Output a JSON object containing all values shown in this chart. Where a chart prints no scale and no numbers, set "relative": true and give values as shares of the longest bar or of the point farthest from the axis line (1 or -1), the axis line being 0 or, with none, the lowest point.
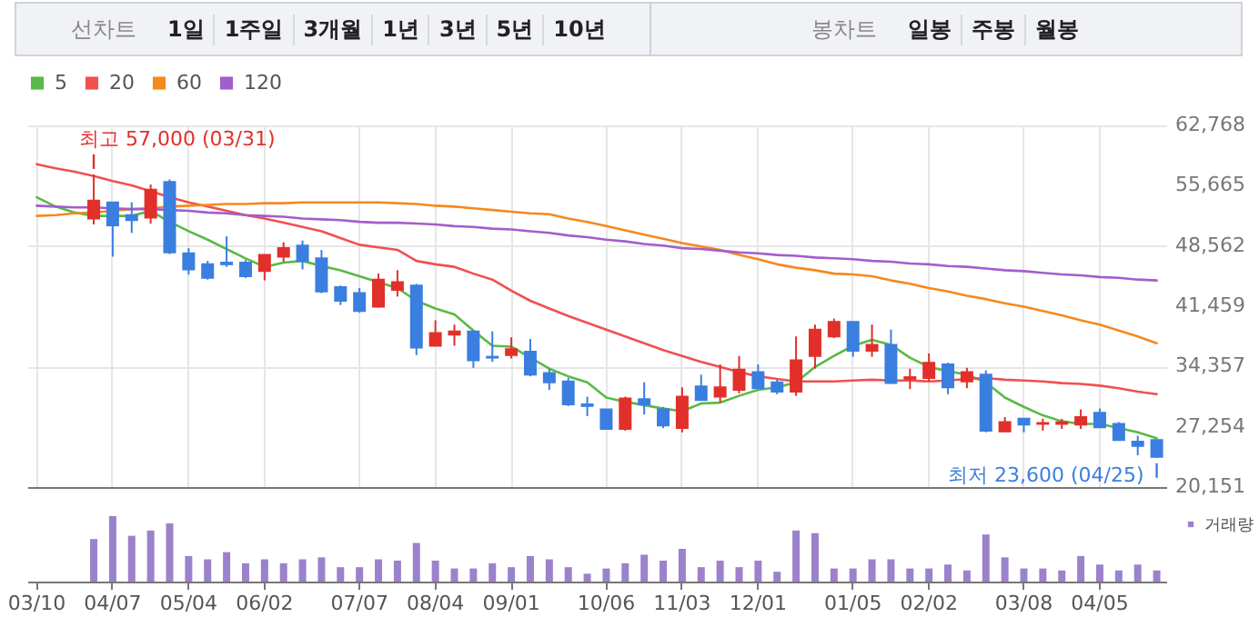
{
  "chart_data": [
    {
      "type": "other",
      "title": "선차트",
      "annotations": [
        "1일",
        "1주일",
        "3개월",
        "1년",
        "3년",
        "5년",
        "10년"
      ]
    },
    {
      "type": "other",
      "title": "봉차트",
      "annotations": [
        "일봉",
        "주봉",
        "월봉"
      ]
    },
    {
      "type": "candlestick",
      "categories": [
        null,
        null,
        null,
        null,
        null,
        null,
        null,
        null,
        null,
        null,
        null,
        null,
        null,
        null,
        null,
        null,
        null,
        null,
        null,
        null,
        null,
        null,
        null,
        null,
        null,
        null,
        null,
        null,
        null,
        null,
        null,
        null,
        null,
        null,
        null,
        null,
        null,
        null,
        null,
        null,
        null,
        null,
        null,
        null,
        null,
        null,
        null,
        null,
        null,
        null,
        null,
        null,
        null,
        null,
        null,
        null,
        null,
        null,
        null,
        null
      ],
      "ohlc": [
        null,
        null,
        null,
        [
          51800,
          57000,
          51100,
          53900
        ],
        [
          53700,
          53700,
          47300,
          51000
        ],
        [
          52200,
          53700,
          50100,
          51600
        ],
        [
          51900,
          55800,
          51200,
          55200
        ],
        [
          56100,
          56400,
          47600,
          47800
        ],
        [
          47700,
          48300,
          45200,
          45800
        ],
        [
          46400,
          46800,
          44600,
          44800
        ],
        [
          46600,
          49700,
          46100,
          46400
        ],
        [
          46600,
          46900,
          44800,
          45000
        ],
        [
          45600,
          47500,
          44500,
          47500
        ],
        [
          47300,
          49000,
          46700,
          48300
        ],
        [
          48600,
          49200,
          45800,
          46800
        ],
        [
          47100,
          48100,
          43000,
          43200
        ],
        [
          43700,
          43900,
          41600,
          42100
        ],
        [
          43000,
          43600,
          40700,
          40900
        ],
        [
          41400,
          45300,
          41300,
          44600
        ],
        [
          43400,
          45700,
          42600,
          44300
        ],
        [
          43900,
          44100,
          35700,
          36600
        ],
        [
          36800,
          39800,
          36800,
          38300
        ],
        [
          38100,
          39300,
          36800,
          38500
        ],
        [
          38500,
          38500,
          34200,
          35100
        ],
        [
          35500,
          38500,
          34900,
          35400
        ],
        [
          35700,
          37800,
          35300,
          36400
        ],
        [
          36100,
          37600,
          33200,
          33400
        ],
        [
          33600,
          34100,
          31600,
          32500
        ],
        [
          32600,
          33000,
          29700,
          29900
        ],
        [
          29900,
          30800,
          28500,
          29700
        ],
        [
          29300,
          29300,
          27000,
          27000
        ],
        [
          27000,
          30800,
          26800,
          30600
        ],
        [
          30500,
          32500,
          28700,
          29900
        ],
        [
          29300,
          29600,
          27100,
          27400
        ],
        [
          27100,
          31900,
          26600,
          30800
        ],
        [
          32000,
          33400,
          30400,
          30400
        ],
        [
          30800,
          34600,
          30100,
          31900
        ],
        [
          31600,
          35600,
          31200,
          34000
        ],
        [
          33700,
          34600,
          31800,
          31800
        ],
        [
          32500,
          32900,
          31100,
          31400
        ],
        [
          31400,
          37900,
          30900,
          35100
        ],
        [
          35600,
          39300,
          34100,
          38700
        ],
        [
          37900,
          40000,
          37700,
          39600
        ],
        [
          39600,
          39600,
          35500,
          36200
        ],
        [
          36200,
          39300,
          35500,
          36900
        ],
        [
          36900,
          38700,
          32300,
          32400
        ],
        [
          32900,
          34100,
          31700,
          33100
        ],
        [
          33000,
          35900,
          32600,
          34800
        ],
        [
          34600,
          34800,
          31100,
          31900
        ],
        [
          32600,
          34200,
          31800,
          33700
        ],
        [
          33400,
          33900,
          26600,
          26800
        ],
        [
          26700,
          28400,
          26600,
          27800
        ],
        [
          28200,
          28200,
          26600,
          27500
        ],
        [
          27600,
          28200,
          26800,
          27700
        ],
        [
          27600,
          28200,
          27000,
          27800
        ],
        [
          27500,
          29300,
          27000,
          28400
        ],
        [
          28900,
          29400,
          27100,
          27200
        ],
        [
          27600,
          27800,
          25600,
          25700
        ],
        [
          25500,
          26200,
          23900,
          25000
        ],
        [
          25700,
          25700,
          23600,
          23700
        ]
      ],
      "series": [
        {
          "name": "5",
          "type": "line",
          "color": "#5ab946",
          "values": [
            54300,
            53200,
            52500,
            52100,
            52100,
            52100,
            52700,
            51400,
            50300,
            49300,
            48200,
            47100,
            46100,
            46600,
            46800,
            46200,
            45700,
            45000,
            44300,
            43600,
            42100,
            41200,
            40500,
            38600,
            36800,
            36700,
            35400,
            34100,
            33200,
            32500,
            30700,
            30200,
            29800,
            29400,
            29100,
            30000,
            30100,
            30900,
            31600,
            31900,
            32500,
            34300,
            35600,
            36800,
            37500,
            36900,
            35400,
            34300,
            33800,
            33400,
            32500,
            30700,
            29600,
            28600,
            27900,
            27600,
            27600,
            27100,
            26600,
            25900
          ]
        },
        {
          "name": "20",
          "type": "line",
          "color": "#f05050",
          "values": [
            58200,
            57700,
            57300,
            56800,
            56200,
            55700,
            55000,
            54300,
            53700,
            53200,
            52700,
            52200,
            51800,
            51300,
            50800,
            50300,
            49500,
            48700,
            48400,
            48100,
            46800,
            46400,
            46100,
            45300,
            44600,
            43300,
            42100,
            41200,
            40300,
            39500,
            38700,
            37900,
            37100,
            36300,
            35600,
            34900,
            34300,
            33700,
            33200,
            32900,
            32600,
            32600,
            32600,
            32700,
            32800,
            32700,
            32700,
            32600,
            32700,
            32900,
            33000,
            32800,
            32700,
            32600,
            32400,
            32300,
            32100,
            31800,
            31400,
            31100
          ]
        },
        {
          "name": "60",
          "type": "line",
          "color": "#f5891e",
          "values": [
            52100,
            52200,
            52400,
            52500,
            52700,
            52900,
            53000,
            53200,
            53300,
            53400,
            53500,
            53500,
            53600,
            53600,
            53700,
            53700,
            53700,
            53700,
            53700,
            53600,
            53500,
            53300,
            53200,
            53000,
            52800,
            52600,
            52400,
            52300,
            51800,
            51400,
            50900,
            50400,
            49900,
            49400,
            48900,
            48500,
            48100,
            47500,
            47000,
            46400,
            46000,
            45700,
            45300,
            45200,
            45000,
            44500,
            44100,
            43600,
            43200,
            42700,
            42300,
            41800,
            41400,
            40900,
            40400,
            39800,
            39300,
            38600,
            37900,
            37100
          ]
        },
        {
          "name": "120",
          "type": "line",
          "color": "#a35dcc",
          "values": [
            53300,
            53200,
            53100,
            53100,
            53000,
            52900,
            52900,
            52800,
            52700,
            52500,
            52400,
            52200,
            52100,
            52000,
            51800,
            51700,
            51600,
            51400,
            51300,
            51300,
            51200,
            51100,
            50900,
            50800,
            50600,
            50500,
            50300,
            50100,
            49800,
            49600,
            49300,
            49100,
            48800,
            48600,
            48300,
            48200,
            48000,
            47800,
            47700,
            47500,
            47400,
            47200,
            47100,
            47000,
            46800,
            46700,
            46500,
            46400,
            46200,
            46100,
            45900,
            45700,
            45600,
            45400,
            45200,
            45100,
            44900,
            44800,
            44600,
            44500
          ]
        }
      ],
      "ylim": [
        20151,
        62768
      ],
      "yticks": [
        {
          "value": 20151,
          "label": "20,151"
        },
        {
          "value": 27254,
          "label": "27,254"
        },
        {
          "value": 34357,
          "label": "34,357"
        },
        {
          "value": 41459,
          "label": "41,459"
        },
        {
          "value": 48562,
          "label": "48,562"
        },
        {
          "value": 55665,
          "label": "55,665"
        },
        {
          "value": 62768,
          "label": "62,768"
        }
      ],
      "grid": true,
      "legend": "top left",
      "tick_labels": "y",
      "annotations": [
        "최고 57,000 (03/31)",
        "최저 23,600 (04/25)"
      ]
    },
    {
      "type": "bar",
      "relative": true,
      "legend": "right",
      "tick_labels": "x",
      "categories": [
        "03/10",
        null,
        null,
        null,
        "04/07",
        null,
        null,
        null,
        "05/04",
        null,
        null,
        null,
        "06/02",
        null,
        null,
        null,
        null,
        "07/07",
        null,
        null,
        null,
        "08/04",
        null,
        null,
        null,
        "09/01",
        null,
        null,
        null,
        null,
        "10/06",
        null,
        null,
        null,
        "11/03",
        null,
        null,
        null,
        "12/01",
        null,
        null,
        null,
        null,
        "01/05",
        null,
        null,
        null,
        "02/02",
        null,
        null,
        null,
        null,
        "03/08",
        null,
        null,
        null,
        "04/05",
        null,
        null,
        null
      ],
      "series": [
        {
          "name": "거래량",
          "color": "#9b82cb",
          "values": [
            null,
            null,
            null,
            0.65,
            1,
            0.7,
            0.78,
            0.89,
            0.39,
            0.34,
            0.45,
            0.28,
            0.34,
            0.28,
            0.34,
            0.37,
            0.22,
            0.22,
            0.34,
            0.32,
            0.59,
            0.32,
            0.2,
            0.2,
            0.28,
            0.22,
            0.39,
            0.34,
            0.22,
            0.12,
            0.2,
            0.28,
            0.41,
            0.32,
            0.5,
            0.22,
            0.32,
            0.22,
            0.32,
            0.15,
            0.78,
            0.74,
            0.2,
            0.2,
            0.34,
            0.34,
            0.2,
            0.2,
            0.26,
            0.17,
            0.72,
            0.37,
            0.2,
            0.2,
            0.17,
            0.39,
            0.26,
            0.17,
            0.26,
            0.17
          ]
        }
      ]
    }
  ]
}
